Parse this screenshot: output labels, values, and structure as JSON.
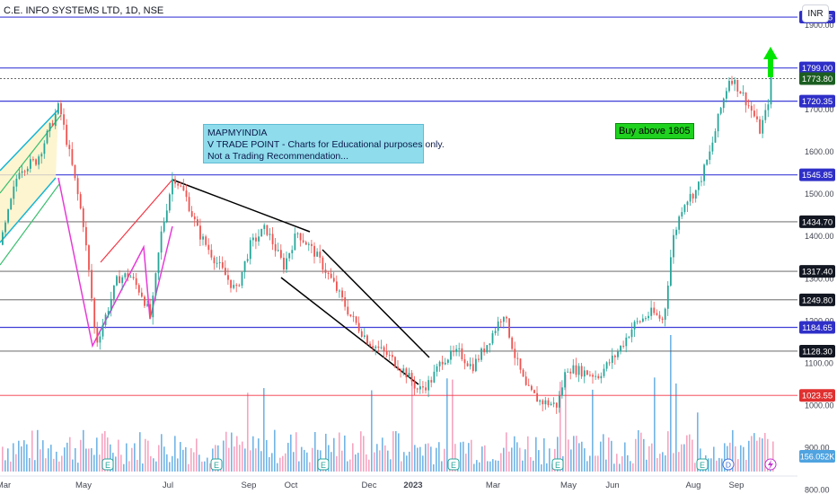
{
  "header": {
    "title": "C.E. INFO SYSTEMS LTD, 1D, NSE",
    "currency": "INR"
  },
  "note": {
    "line1": "MAPMYINDIA",
    "line2": "V TRADE POINT - Charts for Educational purposes only.",
    "line3": "Not a Trading Recommendation..."
  },
  "buy_label": "Buy above 1805",
  "colors": {
    "up": "#26a69a",
    "down": "#ef5350",
    "blue_line": "#3f3fd8",
    "gray_line": "#555555",
    "red_line": "#f23645",
    "volume": "#4fa3e0",
    "arrow": "#00e600"
  },
  "chart_data": {
    "type": "candlestick",
    "title": "C.E. INFO SYSTEMS LTD, 1D, NSE",
    "ylim": [
      790,
      1960
    ],
    "y_ticks": [
      800,
      900,
      1000,
      1100,
      1200,
      1300,
      1400,
      1500,
      1600,
      1700,
      1800,
      1900
    ],
    "y_tick_labels": [
      "800.00",
      "900.00",
      "1000.00",
      "1100.00",
      "1200.00",
      "1300.00",
      "1400.00",
      "1500.00",
      "1600.00",
      "1700.00",
      "1800.00",
      "1900.00"
    ],
    "x_labels": [
      "Mar",
      "May",
      "Jul",
      "Sep",
      "Oct",
      "Dec",
      "2023",
      "Mar",
      "May",
      "Jun",
      "Aug",
      "Sep"
    ],
    "levels": [
      {
        "value": 1919.45,
        "label": "1919.45",
        "style": "blue"
      },
      {
        "value": 1799.0,
        "label": "1799.00",
        "style": "blue"
      },
      {
        "value": 1773.8,
        "label": "1773.80",
        "style": "last"
      },
      {
        "value": 1720.35,
        "label": "1720.35",
        "style": "blue"
      },
      {
        "value": 1545.85,
        "label": "1545.85",
        "style": "blue"
      },
      {
        "value": 1434.7,
        "label": "1434.70",
        "style": "gray"
      },
      {
        "value": 1317.4,
        "label": "1317.40",
        "style": "gray"
      },
      {
        "value": 1249.8,
        "label": "1249.80",
        "style": "gray"
      },
      {
        "value": 1184.65,
        "label": "1184.65",
        "style": "blue"
      },
      {
        "value": 1128.3,
        "label": "1128.30",
        "style": "gray"
      },
      {
        "value": 1023.55,
        "label": "1023.55",
        "style": "red"
      }
    ],
    "volume_label": "156.052K",
    "price_path": [
      [
        0,
        1380
      ],
      [
        20,
        1560
      ],
      [
        40,
        1580
      ],
      [
        65,
        1710
      ],
      [
        80,
        1560
      ],
      [
        92,
        1430
      ],
      [
        100,
        1280
      ],
      [
        106,
        1145
      ],
      [
        118,
        1220
      ],
      [
        130,
        1300
      ],
      [
        143,
        1310
      ],
      [
        158,
        1260
      ],
      [
        167,
        1205
      ],
      [
        178,
        1400
      ],
      [
        192,
        1545
      ],
      [
        205,
        1500
      ],
      [
        220,
        1410
      ],
      [
        240,
        1340
      ],
      [
        262,
        1270
      ],
      [
        278,
        1380
      ],
      [
        295,
        1420
      ],
      [
        315,
        1330
      ],
      [
        330,
        1410
      ],
      [
        350,
        1360
      ],
      [
        370,
        1290
      ],
      [
        390,
        1210
      ],
      [
        410,
        1150
      ],
      [
        430,
        1120
      ],
      [
        450,
        1080
      ],
      [
        465,
        1035
      ],
      [
        478,
        1055
      ],
      [
        492,
        1110
      ],
      [
        510,
        1125
      ],
      [
        525,
        1090
      ],
      [
        540,
        1140
      ],
      [
        560,
        1220
      ],
      [
        572,
        1120
      ],
      [
        585,
        1040
      ],
      [
        600,
        1010
      ],
      [
        620,
        1000
      ],
      [
        630,
        1090
      ],
      [
        648,
        1080
      ],
      [
        665,
        1070
      ],
      [
        685,
        1120
      ],
      [
        705,
        1190
      ],
      [
        725,
        1220
      ],
      [
        738,
        1200
      ],
      [
        748,
        1390
      ],
      [
        760,
        1480
      ],
      [
        775,
        1510
      ],
      [
        790,
        1600
      ],
      [
        800,
        1690
      ],
      [
        812,
        1780
      ],
      [
        825,
        1740
      ],
      [
        838,
        1690
      ],
      [
        845,
        1650
      ],
      [
        853,
        1700
      ],
      [
        858,
        1774
      ]
    ]
  }
}
